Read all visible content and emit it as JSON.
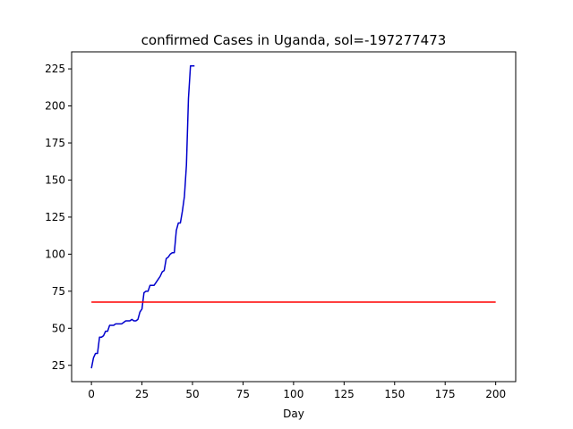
{
  "chart_data": {
    "type": "line",
    "title": "confirmed Cases in Uganda, sol=-197277473",
    "xlabel": "Day",
    "ylabel": "",
    "xlim": [
      -9.8,
      209.9
    ],
    "ylim": [
      14.0,
      236.5
    ],
    "xticks": [
      0,
      25,
      50,
      75,
      100,
      125,
      150,
      175,
      200
    ],
    "yticks": [
      25,
      50,
      75,
      100,
      125,
      150,
      175,
      200,
      225
    ],
    "grid": false,
    "series": [
      {
        "color": "#0000cc",
        "x": [
          0,
          1,
          2,
          3,
          4,
          5,
          6,
          7,
          8,
          9,
          10,
          11,
          12,
          13,
          14,
          15,
          16,
          17,
          18,
          19,
          20,
          21,
          22,
          23,
          24,
          25,
          26,
          27,
          28,
          29,
          30,
          31,
          32,
          33,
          34,
          35,
          36,
          37,
          38,
          39,
          40,
          41,
          42,
          43,
          44,
          45,
          46,
          47,
          48,
          49,
          50,
          51
        ],
        "y": [
          23,
          30,
          33,
          33,
          44,
          44,
          45,
          48,
          48,
          52,
          52,
          52,
          53,
          53,
          53,
          53,
          54,
          55,
          55,
          55,
          56,
          55,
          55,
          56,
          61,
          63,
          74,
          75,
          75,
          79,
          79,
          79,
          81,
          83,
          85,
          88,
          89,
          97,
          98,
          100,
          101,
          101,
          116,
          121,
          121,
          129,
          139,
          160,
          205,
          227,
          227,
          227
        ]
      },
      {
        "color": "#ff0000",
        "x": [
          0,
          200
        ],
        "y": [
          67.7,
          67.7
        ]
      }
    ]
  }
}
